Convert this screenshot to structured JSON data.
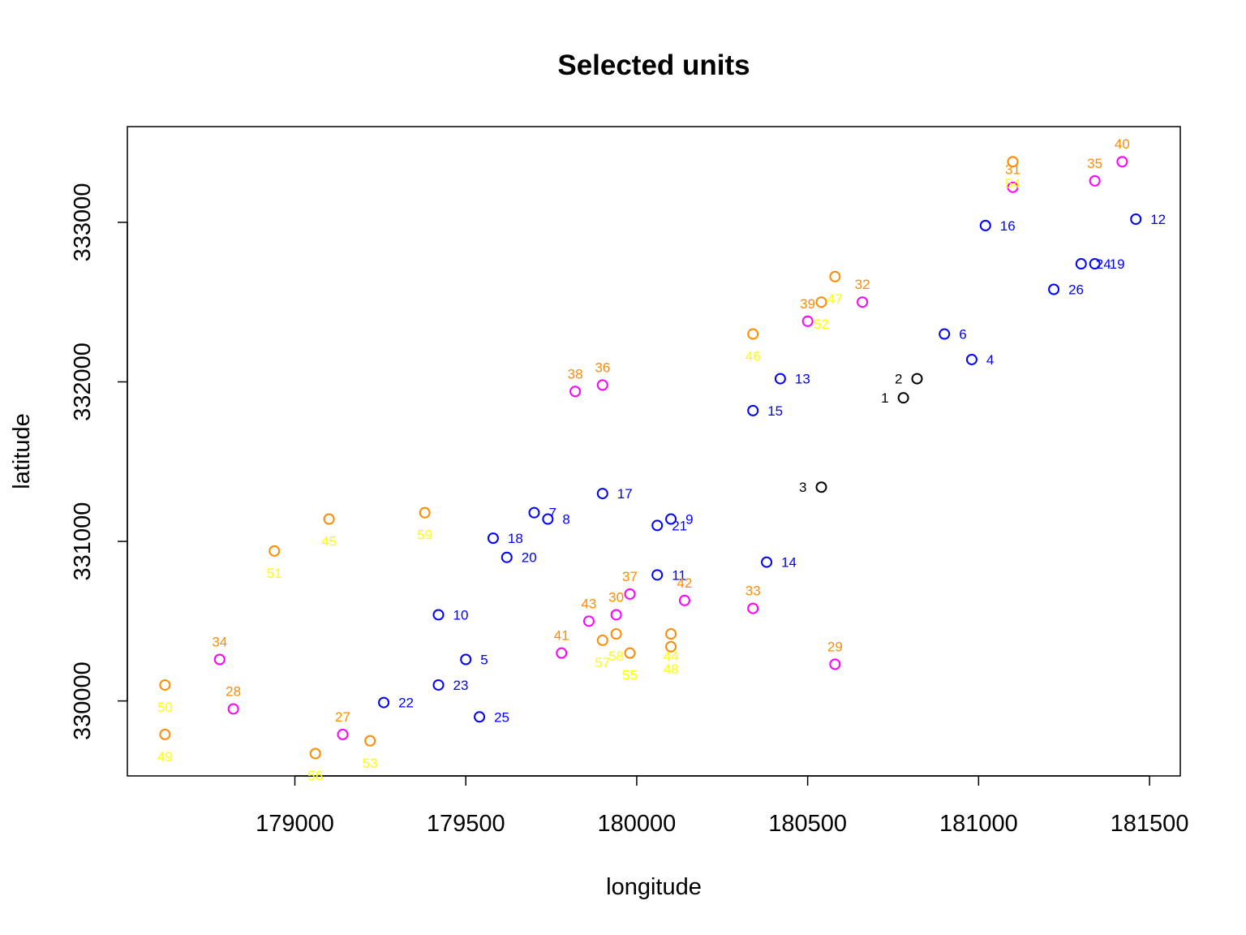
{
  "chart_data": {
    "type": "scatter",
    "title": "Selected units",
    "xlabel": "longitude",
    "ylabel": "latitude",
    "xlim": [
      178510,
      181590
    ],
    "ylim": [
      329530,
      333600
    ],
    "xticks": [
      179000,
      179500,
      180000,
      180500,
      181000,
      181500
    ],
    "yticks": [
      330000,
      331000,
      332000,
      333000
    ],
    "grid": false,
    "legend": "none",
    "colors": {
      "black": "#000000",
      "blue": "#0000ff",
      "magenta": "#ff00ff",
      "orange": "#ff8c00",
      "yellow": "#ffff00"
    },
    "points": [
      {
        "id": "1",
        "x": 180780,
        "y": 331900,
        "color": "black",
        "label_pos": "left"
      },
      {
        "id": "2",
        "x": 180820,
        "y": 332020,
        "color": "black",
        "label_pos": "left"
      },
      {
        "id": "3",
        "x": 180540,
        "y": 331340,
        "color": "black",
        "label_pos": "left"
      },
      {
        "id": "4",
        "x": 180980,
        "y": 332140,
        "color": "blue",
        "label_pos": "right"
      },
      {
        "id": "5",
        "x": 179500,
        "y": 330260,
        "color": "blue",
        "label_pos": "right"
      },
      {
        "id": "6",
        "x": 180900,
        "y": 332300,
        "color": "blue",
        "label_pos": "right"
      },
      {
        "id": "7",
        "x": 179700,
        "y": 331180,
        "color": "blue",
        "label_pos": "right"
      },
      {
        "id": "8",
        "x": 179740,
        "y": 331140,
        "color": "blue",
        "label_pos": "right"
      },
      {
        "id": "9",
        "x": 180100,
        "y": 331140,
        "color": "blue",
        "label_pos": "right"
      },
      {
        "id": "10",
        "x": 179420,
        "y": 330540,
        "color": "blue",
        "label_pos": "right"
      },
      {
        "id": "11",
        "x": 180060,
        "y": 330790,
        "color": "blue",
        "label_pos": "right"
      },
      {
        "id": "12",
        "x": 181460,
        "y": 333020,
        "color": "blue",
        "label_pos": "right"
      },
      {
        "id": "13",
        "x": 180420,
        "y": 332020,
        "color": "blue",
        "label_pos": "right"
      },
      {
        "id": "14",
        "x": 180380,
        "y": 330870,
        "color": "blue",
        "label_pos": "right"
      },
      {
        "id": "15",
        "x": 180340,
        "y": 331820,
        "color": "blue",
        "label_pos": "right"
      },
      {
        "id": "16",
        "x": 181020,
        "y": 332980,
        "color": "blue",
        "label_pos": "right"
      },
      {
        "id": "17",
        "x": 179900,
        "y": 331300,
        "color": "blue",
        "label_pos": "right"
      },
      {
        "id": "18",
        "x": 179580,
        "y": 331020,
        "color": "blue",
        "label_pos": "right"
      },
      {
        "id": "19",
        "x": 181340,
        "y": 332740,
        "color": "blue",
        "label_pos": "right"
      },
      {
        "id": "20",
        "x": 179620,
        "y": 330900,
        "color": "blue",
        "label_pos": "right"
      },
      {
        "id": "21",
        "x": 180060,
        "y": 331100,
        "color": "blue",
        "label_pos": "right"
      },
      {
        "id": "22",
        "x": 179260,
        "y": 329990,
        "color": "blue",
        "label_pos": "right"
      },
      {
        "id": "23",
        "x": 179420,
        "y": 330100,
        "color": "blue",
        "label_pos": "right"
      },
      {
        "id": "24",
        "x": 181300,
        "y": 332740,
        "color": "blue",
        "label_pos": "right"
      },
      {
        "id": "25",
        "x": 179540,
        "y": 329900,
        "color": "blue",
        "label_pos": "right"
      },
      {
        "id": "26",
        "x": 181220,
        "y": 332580,
        "color": "blue",
        "label_pos": "right"
      },
      {
        "id": "27",
        "x": 179140,
        "y": 329790,
        "color": "magenta",
        "label_pos": "above"
      },
      {
        "id": "28",
        "x": 178820,
        "y": 329950,
        "color": "magenta",
        "label_pos": "above"
      },
      {
        "id": "29",
        "x": 180580,
        "y": 330230,
        "color": "magenta",
        "label_pos": "above"
      },
      {
        "id": "30",
        "x": 179940,
        "y": 330540,
        "color": "magenta",
        "label_pos": "above"
      },
      {
        "id": "31",
        "x": 181100,
        "y": 333220,
        "color": "magenta",
        "label_pos": "above"
      },
      {
        "id": "32",
        "x": 180660,
        "y": 332500,
        "color": "magenta",
        "label_pos": "above"
      },
      {
        "id": "33",
        "x": 180340,
        "y": 330580,
        "color": "magenta",
        "label_pos": "above"
      },
      {
        "id": "34",
        "x": 178780,
        "y": 330260,
        "color": "magenta",
        "label_pos": "above"
      },
      {
        "id": "35",
        "x": 181340,
        "y": 333260,
        "color": "magenta",
        "label_pos": "above"
      },
      {
        "id": "36",
        "x": 179900,
        "y": 331980,
        "color": "magenta",
        "label_pos": "above"
      },
      {
        "id": "37",
        "x": 179980,
        "y": 330670,
        "color": "magenta",
        "label_pos": "above"
      },
      {
        "id": "38",
        "x": 179820,
        "y": 331940,
        "color": "magenta",
        "label_pos": "above"
      },
      {
        "id": "39",
        "x": 180500,
        "y": 332380,
        "color": "magenta",
        "label_pos": "above"
      },
      {
        "id": "40",
        "x": 181420,
        "y": 333380,
        "color": "magenta",
        "label_pos": "above"
      },
      {
        "id": "41",
        "x": 179780,
        "y": 330300,
        "color": "magenta",
        "label_pos": "above"
      },
      {
        "id": "42",
        "x": 180140,
        "y": 330630,
        "color": "magenta",
        "label_pos": "above"
      },
      {
        "id": "43",
        "x": 179860,
        "y": 330500,
        "color": "magenta",
        "label_pos": "above"
      },
      {
        "id": "44",
        "x": 180100,
        "y": 330420,
        "color": "orange",
        "label_pos": "below"
      },
      {
        "id": "45",
        "x": 179100,
        "y": 331140,
        "color": "orange",
        "label_pos": "below"
      },
      {
        "id": "46",
        "x": 180340,
        "y": 332300,
        "color": "orange",
        "label_pos": "below"
      },
      {
        "id": "47",
        "x": 180580,
        "y": 332660,
        "color": "orange",
        "label_pos": "below"
      },
      {
        "id": "48",
        "x": 180100,
        "y": 330340,
        "color": "orange",
        "label_pos": "below"
      },
      {
        "id": "49",
        "x": 178620,
        "y": 329790,
        "color": "orange",
        "label_pos": "below"
      },
      {
        "id": "50",
        "x": 178620,
        "y": 330100,
        "color": "orange",
        "label_pos": "below"
      },
      {
        "id": "51",
        "x": 178940,
        "y": 330940,
        "color": "orange",
        "label_pos": "below"
      },
      {
        "id": "52",
        "x": 180540,
        "y": 332500,
        "color": "orange",
        "label_pos": "below"
      },
      {
        "id": "53",
        "x": 179220,
        "y": 329750,
        "color": "orange",
        "label_pos": "below"
      },
      {
        "id": "54",
        "x": 181100,
        "y": 333380,
        "color": "orange",
        "label_pos": "below"
      },
      {
        "id": "55",
        "x": 179980,
        "y": 330300,
        "color": "orange",
        "label_pos": "below"
      },
      {
        "id": "56",
        "x": 179060,
        "y": 329670,
        "color": "orange",
        "label_pos": "below"
      },
      {
        "id": "57",
        "x": 179900,
        "y": 330380,
        "color": "orange",
        "label_pos": "below"
      },
      {
        "id": "58",
        "x": 179940,
        "y": 330420,
        "color": "orange",
        "label_pos": "below"
      },
      {
        "id": "59",
        "x": 179380,
        "y": 331180,
        "color": "orange",
        "label_pos": "below"
      }
    ],
    "extra_labels": [
      {
        "id": "30",
        "color": "orange",
        "near_point": "57"
      },
      {
        "id": "37",
        "color": "orange",
        "near_point": "55"
      },
      {
        "id": "42",
        "color": "orange",
        "near_point": "44"
      },
      {
        "id": "43",
        "color": "orange",
        "near_point": "57"
      },
      {
        "id": "33",
        "color": "orange",
        "near_point": "33"
      },
      {
        "id": "36",
        "color": "orange",
        "near_point": "36"
      },
      {
        "id": "38",
        "color": "orange",
        "near_point": "38"
      },
      {
        "id": "39",
        "color": "orange",
        "near_point": "52"
      },
      {
        "id": "32",
        "color": "orange",
        "near_point": "47"
      },
      {
        "id": "41",
        "color": "orange",
        "near_point": "41"
      },
      {
        "id": "29",
        "color": "orange",
        "near_point": "29"
      },
      {
        "id": "34",
        "color": "orange",
        "near_point": "34"
      },
      {
        "id": "28",
        "color": "orange",
        "near_point": "28"
      },
      {
        "id": "27",
        "color": "orange",
        "near_point": "27"
      },
      {
        "id": "35",
        "color": "orange",
        "near_point": "35"
      },
      {
        "id": "40",
        "color": "orange",
        "near_point": "40"
      },
      {
        "id": "31",
        "color": "orange",
        "near_point": "54"
      }
    ]
  }
}
